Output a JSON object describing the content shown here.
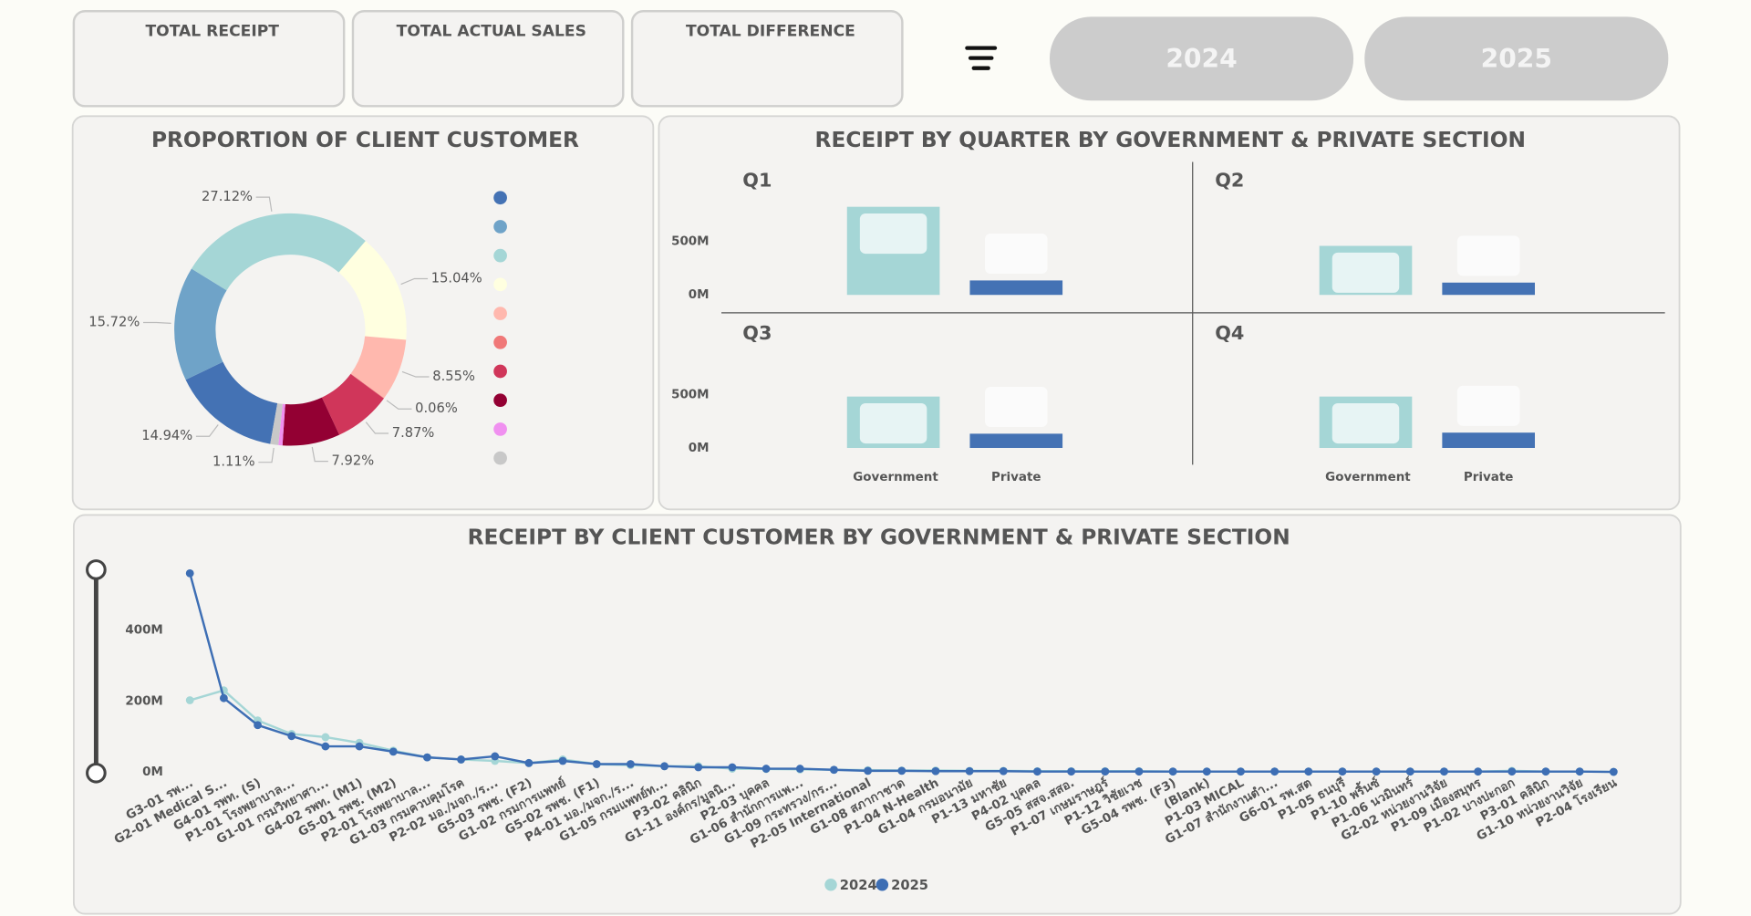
{
  "header": {
    "cards": [
      {
        "title": "TOTAL RECEIPT"
      },
      {
        "title": "TOTAL ACTUAL SALES"
      },
      {
        "title": "TOTAL DIFFERENCE"
      }
    ],
    "year_buttons": [
      "2024",
      "2025"
    ]
  },
  "chart_data": [
    {
      "type": "donut",
      "title": "PROPORTION OF CLIENT CUSTOMER",
      "values": [
        14.94,
        15.72,
        27.12,
        15.04,
        8.55,
        0.06,
        7.87,
        7.92,
        0.56,
        1.11
      ],
      "value_labels": [
        "14.94%",
        "15.72%",
        "27.12%",
        "15.04%",
        "8.55%",
        "0.06%",
        "7.87%",
        "7.92%",
        null,
        "1.11%"
      ],
      "colors": [
        "#4472b4",
        "#6fa3c8",
        "#a5d6d6",
        "#ffffe0",
        "#ffb8ae",
        "#f07878",
        "#d0365a",
        "#930033",
        "#f090f0",
        "#c8c8c8"
      ]
    },
    {
      "type": "bar-grid",
      "title": "RECEIPT BY QUARTER BY GOVERNMENT & PRIVATE SECTION",
      "categories": [
        "Government",
        "Private"
      ],
      "colors": [
        "#a5d6d6",
        "#4472b4"
      ],
      "panels": [
        {
          "title": "Q1",
          "values": [
            823000000,
            135000000
          ]
        },
        {
          "title": "Q2",
          "values": [
            458000000,
            115000000
          ]
        },
        {
          "title": "Q3",
          "values": [
            480000000,
            133000000
          ]
        },
        {
          "title": "Q4",
          "values": [
            480000000,
            143000000
          ]
        }
      ],
      "ylim": [
        0,
        1200000000
      ],
      "yticks": [
        {
          "value": 0,
          "label": "0M"
        },
        {
          "value": 500000000,
          "label": "500M"
        }
      ]
    },
    {
      "type": "line",
      "title": "RECEIPT BY CLIENT CUSTOMER BY GOVERNMENT & PRIVATE SECTION",
      "categories": [
        "G3-01 รพ...",
        "G2-01 Medical S...",
        "G4-01 รพท. (S)",
        "P1-01 โรงพยาบาล...",
        "G1-01 กรมวิทยาศา...",
        "G4-02 รพท. (M1)",
        "G5-01 รพช. (M2)",
        "P2-01 โรงพยาบาล...",
        "G1-03 กรมควบคุมโรค",
        "P2-02 มอ./มจก./ร...",
        "G5-03 รพช. (F2)",
        "G1-02 กรมการแพทย์",
        "G5-02 รพช. (F1)",
        "P4-01 มอ./มจก./ร...",
        "G1-05 กรมแพทย์ท...",
        "P3-02 คลินิก",
        "G1-11 องค์กร/มูลนิ...",
        "P2-03 บุคคล",
        "G1-06 สำนักการแพ...",
        "G1-09 กระทรวง/กร...",
        "P2-05 International",
        "G1-08 สภากาชาด",
        "P1-04 N-Health",
        "G1-04 กรมอนามัย",
        "P1-13 มหาชัย",
        "P4-02 บุคคล",
        "G5-05 สสจ.สสอ.",
        "P1-07 เกษมราษฎร์",
        "P1-12 วิชัยเวช",
        "G5-04 รพช. (F3)",
        "(Blank)",
        "P1-03 MICAL",
        "G1-07 สำนักงานตำ...",
        "G6-01 รพ.สต",
        "P1-05 ธนบุรี",
        "P1-10 พริ้นซ์",
        "P1-06 นวมินทร์",
        "G2-02 หน่วยงานวิจัย",
        "P1-09 เมืองสมุทร",
        "P1-02 บางปะกอก",
        "P3-01 คลินิก",
        "G1-10 หน่วยงานวิจัย",
        "P2-04 โรงเรียน"
      ],
      "series": [
        {
          "name": "2024",
          "color": "#a5d6d6",
          "values": [
            202000000,
            230000000,
            145000000,
            107000000,
            98000000,
            82000000,
            60000000,
            41000000,
            35000000,
            31000000,
            25000000,
            35000000,
            22000000,
            19000000,
            16000000,
            16000000,
            9000000,
            8000000,
            7000000,
            6000000,
            5000000,
            4000000,
            4000000,
            3000000,
            3000000,
            2000000,
            2000000,
            2000000,
            2000000,
            1000000,
            1000000,
            1000000,
            1000000,
            1000000,
            1000000,
            1000000,
            1000000,
            1000000,
            1000000,
            3000000,
            1000000,
            1000000,
            0
          ]
        },
        {
          "name": "2025",
          "color": "#3d6eb4",
          "values": [
            560000000,
            208000000,
            132000000,
            101000000,
            72000000,
            72000000,
            57000000,
            41000000,
            35000000,
            44000000,
            25000000,
            31000000,
            22000000,
            22000000,
            16000000,
            13000000,
            13000000,
            9000000,
            9000000,
            6000000,
            3000000,
            3000000,
            2000000,
            2000000,
            2000000,
            1000000,
            1000000,
            1000000,
            1000000,
            1000000,
            1000000,
            1000000,
            1000000,
            1000000,
            1000000,
            1000000,
            1000000,
            1000000,
            1000000,
            1000000,
            1000000,
            1000000,
            0
          ]
        }
      ],
      "ylim": [
        0,
        600000000
      ],
      "yticks": [
        {
          "value": 0,
          "label": "0M"
        },
        {
          "value": 200000000,
          "label": "200M"
        },
        {
          "value": 400000000,
          "label": "400M"
        }
      ]
    }
  ]
}
